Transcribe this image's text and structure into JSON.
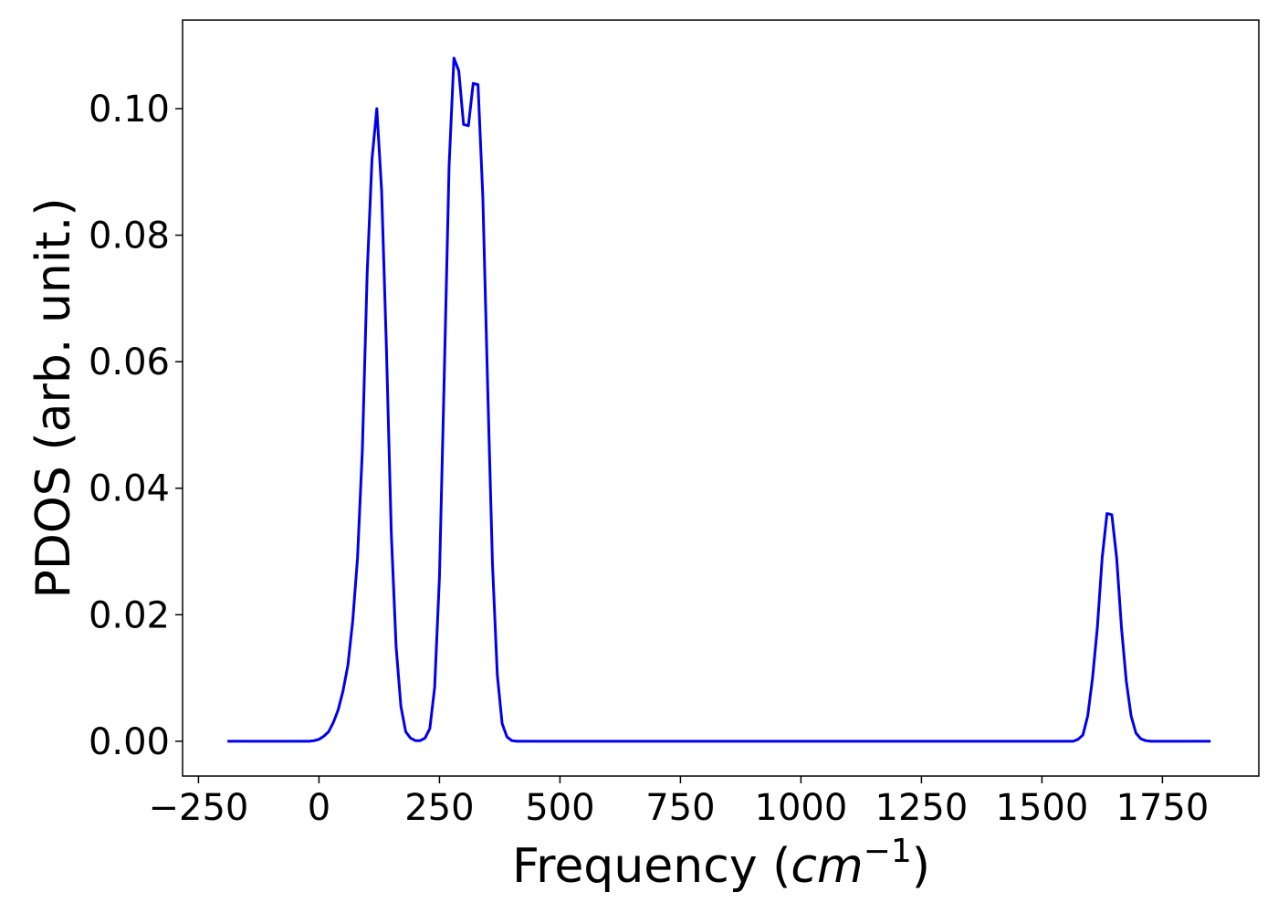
{
  "chart_data": {
    "type": "line",
    "ylabel": "PDOS (arb. unit.)",
    "xlabel": [
      "Frequency (",
      "cm",
      "−1",
      ")"
    ],
    "x": [
      -190,
      -20,
      -10,
      0,
      10,
      20,
      30,
      40,
      50,
      60,
      70,
      80,
      90,
      100,
      110,
      120,
      130,
      140,
      150,
      160,
      170,
      180,
      190,
      200,
      210,
      220,
      230,
      240,
      250,
      260,
      270,
      280,
      290,
      300,
      310,
      320,
      330,
      340,
      350,
      360,
      370,
      380,
      390,
      400,
      410,
      1565,
      1575,
      1585,
      1595,
      1605,
      1615,
      1625,
      1635,
      1645,
      1655,
      1665,
      1675,
      1685,
      1695,
      1705,
      1715,
      1725,
      1850
    ],
    "series": [
      {
        "color": "#0000ee",
        "values": [
          0,
          0,
          0.0001,
          0.0003,
          0.0008,
          0.0015,
          0.003,
          0.005,
          0.008,
          0.012,
          0.019,
          0.029,
          0.046,
          0.074,
          0.092,
          0.1,
          0.087,
          0.062,
          0.033,
          0.015,
          0.0055,
          0.0015,
          0.0005,
          0.0001,
          0.0001,
          0.0005,
          0.002,
          0.0085,
          0.026,
          0.058,
          0.091,
          0.108,
          0.106,
          0.0975,
          0.0973,
          0.104,
          0.1038,
          0.086,
          0.056,
          0.028,
          0.0105,
          0.0028,
          0.0007,
          0.0001,
          0,
          0,
          0.0003,
          0.001,
          0.004,
          0.01,
          0.018,
          0.029,
          0.036,
          0.0358,
          0.029,
          0.018,
          0.0095,
          0.004,
          0.0013,
          0.0004,
          0.0001,
          0,
          0
        ]
      }
    ],
    "xlim": [
      -283,
      1950
    ],
    "ylim": [
      -0.0055,
      0.114
    ],
    "xticks": [
      {
        "value": -250,
        "label": "−250"
      },
      0,
      250,
      500,
      750,
      1000,
      1250,
      1500,
      1750
    ],
    "yticks": [
      {
        "value": 0,
        "label": "0.00"
      },
      {
        "value": 0.02,
        "label": "0.02"
      },
      {
        "value": 0.04,
        "label": "0.04"
      },
      {
        "value": 0.06,
        "label": "0.06"
      },
      {
        "value": 0.08,
        "label": "0.08"
      },
      {
        "value": 0.1,
        "label": "0.10"
      }
    ]
  }
}
